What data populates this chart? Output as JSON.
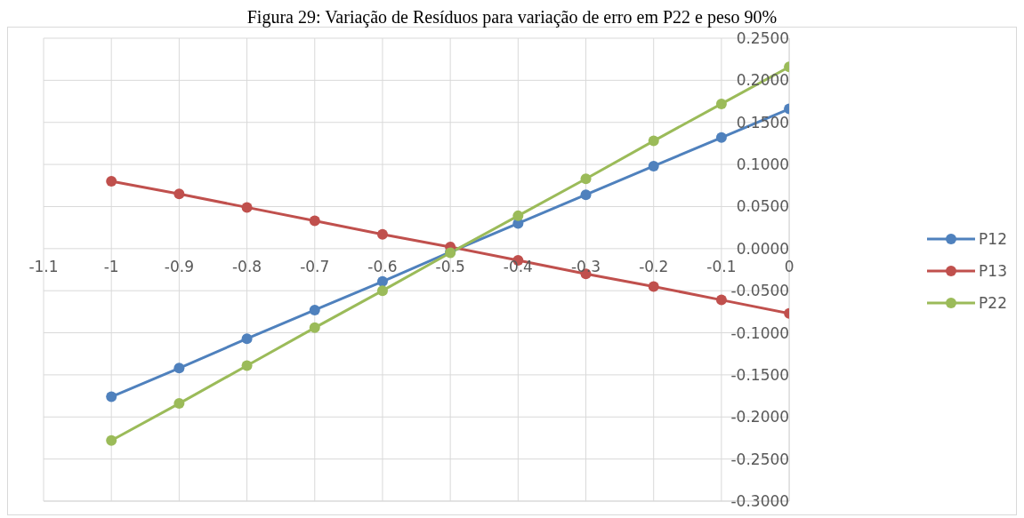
{
  "chart_data": {
    "type": "line",
    "title": "Figura 29: Variação de Resíduos para variação de erro em P22 e peso 90%",
    "x": [
      -1,
      -0.9,
      -0.8,
      -0.7,
      -0.6,
      -0.5,
      -0.4,
      -0.3,
      -0.2,
      -0.1,
      0
    ],
    "series": [
      {
        "name": "P12",
        "color": "#4f81bd",
        "values": [
          -0.176,
          -0.142,
          -0.107,
          -0.073,
          -0.039,
          -0.004,
          0.03,
          0.064,
          0.098,
          0.132,
          0.166
        ]
      },
      {
        "name": "P13",
        "color": "#c0504d",
        "values": [
          0.08,
          0.065,
          0.049,
          0.033,
          0.017,
          0.002,
          -0.014,
          -0.03,
          -0.045,
          -0.061,
          -0.077
        ]
      },
      {
        "name": "P22",
        "color": "#9bbb59",
        "values": [
          -0.228,
          -0.184,
          -0.139,
          -0.094,
          -0.05,
          -0.005,
          0.039,
          0.083,
          0.128,
          0.172,
          0.216
        ]
      }
    ],
    "xlim": [
      -1.1,
      0
    ],
    "xticks": [
      -1.1,
      -1,
      -0.9,
      -0.8,
      -0.7,
      -0.6,
      -0.5,
      -0.4,
      -0.3,
      -0.2,
      -0.1,
      0
    ],
    "ylim": [
      -0.3,
      0.25
    ],
    "yticks": [
      {
        "value": 0.25,
        "label": "0.2500"
      },
      {
        "value": 0.2,
        "label": "0.2000"
      },
      {
        "value": 0.15,
        "label": "0.1500"
      },
      {
        "value": 0.1,
        "label": "0.1000"
      },
      {
        "value": 0.05,
        "label": "0.0500"
      },
      {
        "value": 0,
        "label": "0.0000"
      },
      {
        "value": -0.05,
        "label": "-0.0500"
      },
      {
        "value": -0.1,
        "label": "-0.1000"
      },
      {
        "value": -0.15,
        "label": "-0.1500"
      },
      {
        "value": -0.2,
        "label": "-0.2000"
      },
      {
        "value": -0.25,
        "label": "-0.2500"
      },
      {
        "value": -0.3,
        "label": "-0.3000"
      }
    ],
    "grid": true,
    "legend": "right",
    "marker": "circle",
    "line_style": "solid"
  }
}
